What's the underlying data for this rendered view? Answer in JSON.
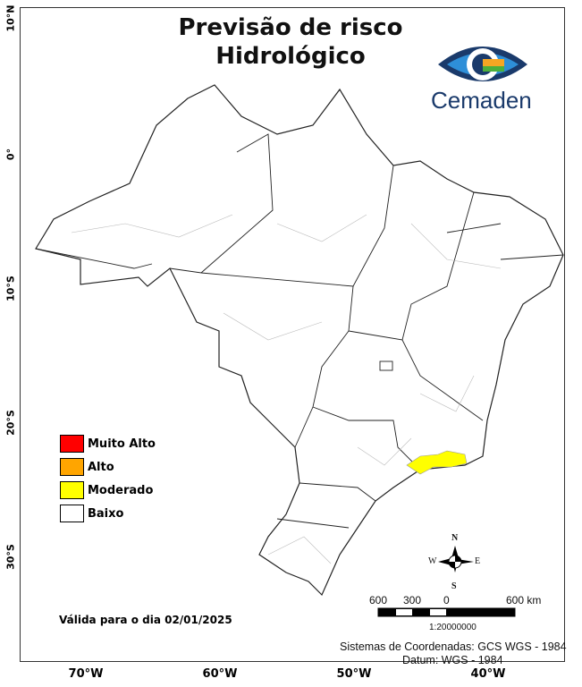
{
  "title_line1": "Previsão de risco",
  "title_line2": "Hidrológico",
  "logo": {
    "text": "Cemaden",
    "colors": [
      "#1a3a6b",
      "#2e8fd8",
      "#f5a623",
      "#4caf3c"
    ]
  },
  "latitude_labels": [
    "10°N",
    "0°",
    "10°S",
    "20°S",
    "30°S"
  ],
  "longitude_labels": [
    "70°W",
    "60°W",
    "50°W",
    "40°W"
  ],
  "legend": [
    {
      "label": "Muito Alto",
      "color": "#ff0000"
    },
    {
      "label": "Alto",
      "color": "#ffa500"
    },
    {
      "label": "Moderado",
      "color": "#ffff00"
    },
    {
      "label": "Baixo",
      "color": "#ffffff"
    }
  ],
  "valid_date": "Válida para o dia 02/01/2025",
  "compass": {
    "n": "N",
    "s": "S",
    "e": "E",
    "w": "W"
  },
  "scale_bar": {
    "labels": [
      "600",
      "300",
      "0",
      "600 km"
    ],
    "ratio": "1:20000000"
  },
  "coords_system": "Sistemas de Coordenadas: GCS WGS - 1984",
  "datum": "Datum: WGS - 1984"
}
